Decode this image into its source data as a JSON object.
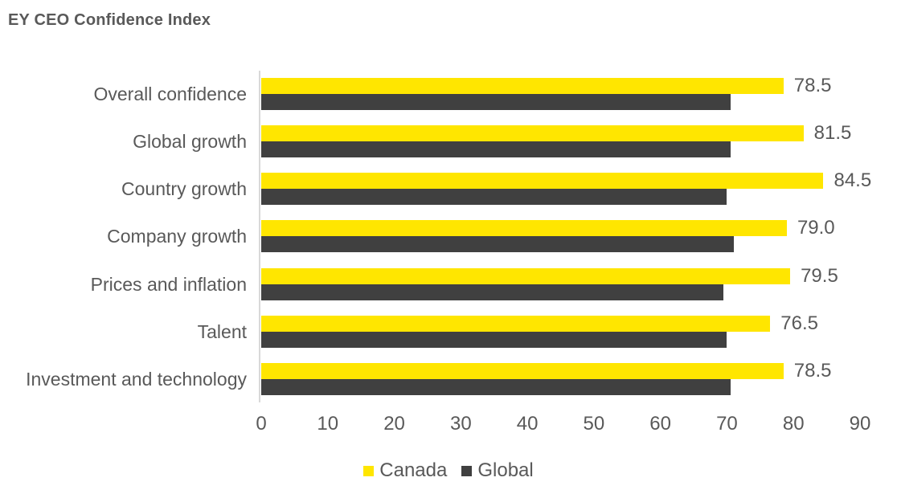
{
  "page": {
    "background": "#ffffff"
  },
  "colors": {
    "title_text": "#595959",
    "label_text": "#595959",
    "canada": "#FFE600",
    "global": "#404040",
    "axis_line": "#D9D9D9"
  },
  "chart_data": {
    "type": "bar",
    "orientation": "horizontal",
    "title": "EY CEO Confidence Index",
    "categories": [
      "Overall confidence",
      "Global growth",
      "Country growth",
      "Company growth",
      "Prices and inflation",
      "Talent",
      "Investment and technology"
    ],
    "series": [
      {
        "name": "Canada",
        "color": "#FFE600",
        "values": [
          78.5,
          81.5,
          84.5,
          79.0,
          79.5,
          76.5,
          78.5
        ],
        "data_labels": [
          "78.5",
          "81.5",
          "84.5",
          "79.0",
          "79.5",
          "76.5",
          "78.5"
        ]
      },
      {
        "name": "Global",
        "color": "#404040",
        "values": [
          70.5,
          70.5,
          70.0,
          71.0,
          69.5,
          70.0,
          70.5
        ],
        "data_labels": null
      }
    ],
    "xlim": [
      0,
      90
    ],
    "xticks": [
      0,
      10,
      20,
      30,
      40,
      50,
      60,
      70,
      80,
      90
    ],
    "grid": false,
    "legend_position": "bottom",
    "value_labels_series": "Canada"
  }
}
